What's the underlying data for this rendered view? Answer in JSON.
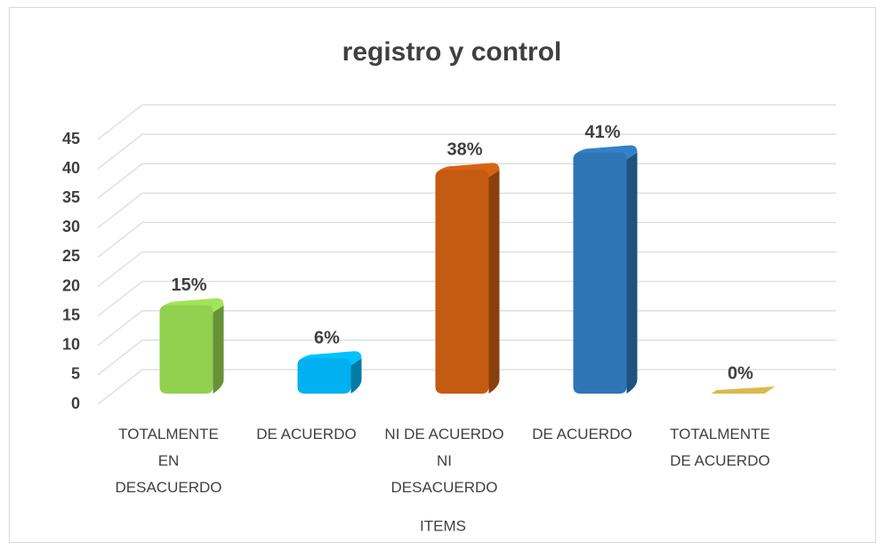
{
  "chart_data": {
    "type": "bar3d",
    "title": "registro y control",
    "x_label": "ITEMS",
    "categories": [
      "TOTALMENTE EN DESACUERDO",
      "DE ACUERDO",
      "NI DE ACUERDO NI DESACUERDO",
      "DE ACUERDO",
      "TOTALMENTE DE ACUERDO"
    ],
    "values": [
      15,
      6,
      38,
      41,
      0
    ],
    "value_labels": [
      "15%",
      "6%",
      "38%",
      "41%",
      "0%"
    ],
    "colors": [
      "#92d050",
      "#00b0f0",
      "#c55a11",
      "#2e75b6",
      "#c9a846"
    ],
    "ylim": [
      0,
      45
    ],
    "yticks": [
      0,
      5,
      10,
      15,
      20,
      25,
      30,
      35,
      40,
      45
    ],
    "grid": true
  }
}
